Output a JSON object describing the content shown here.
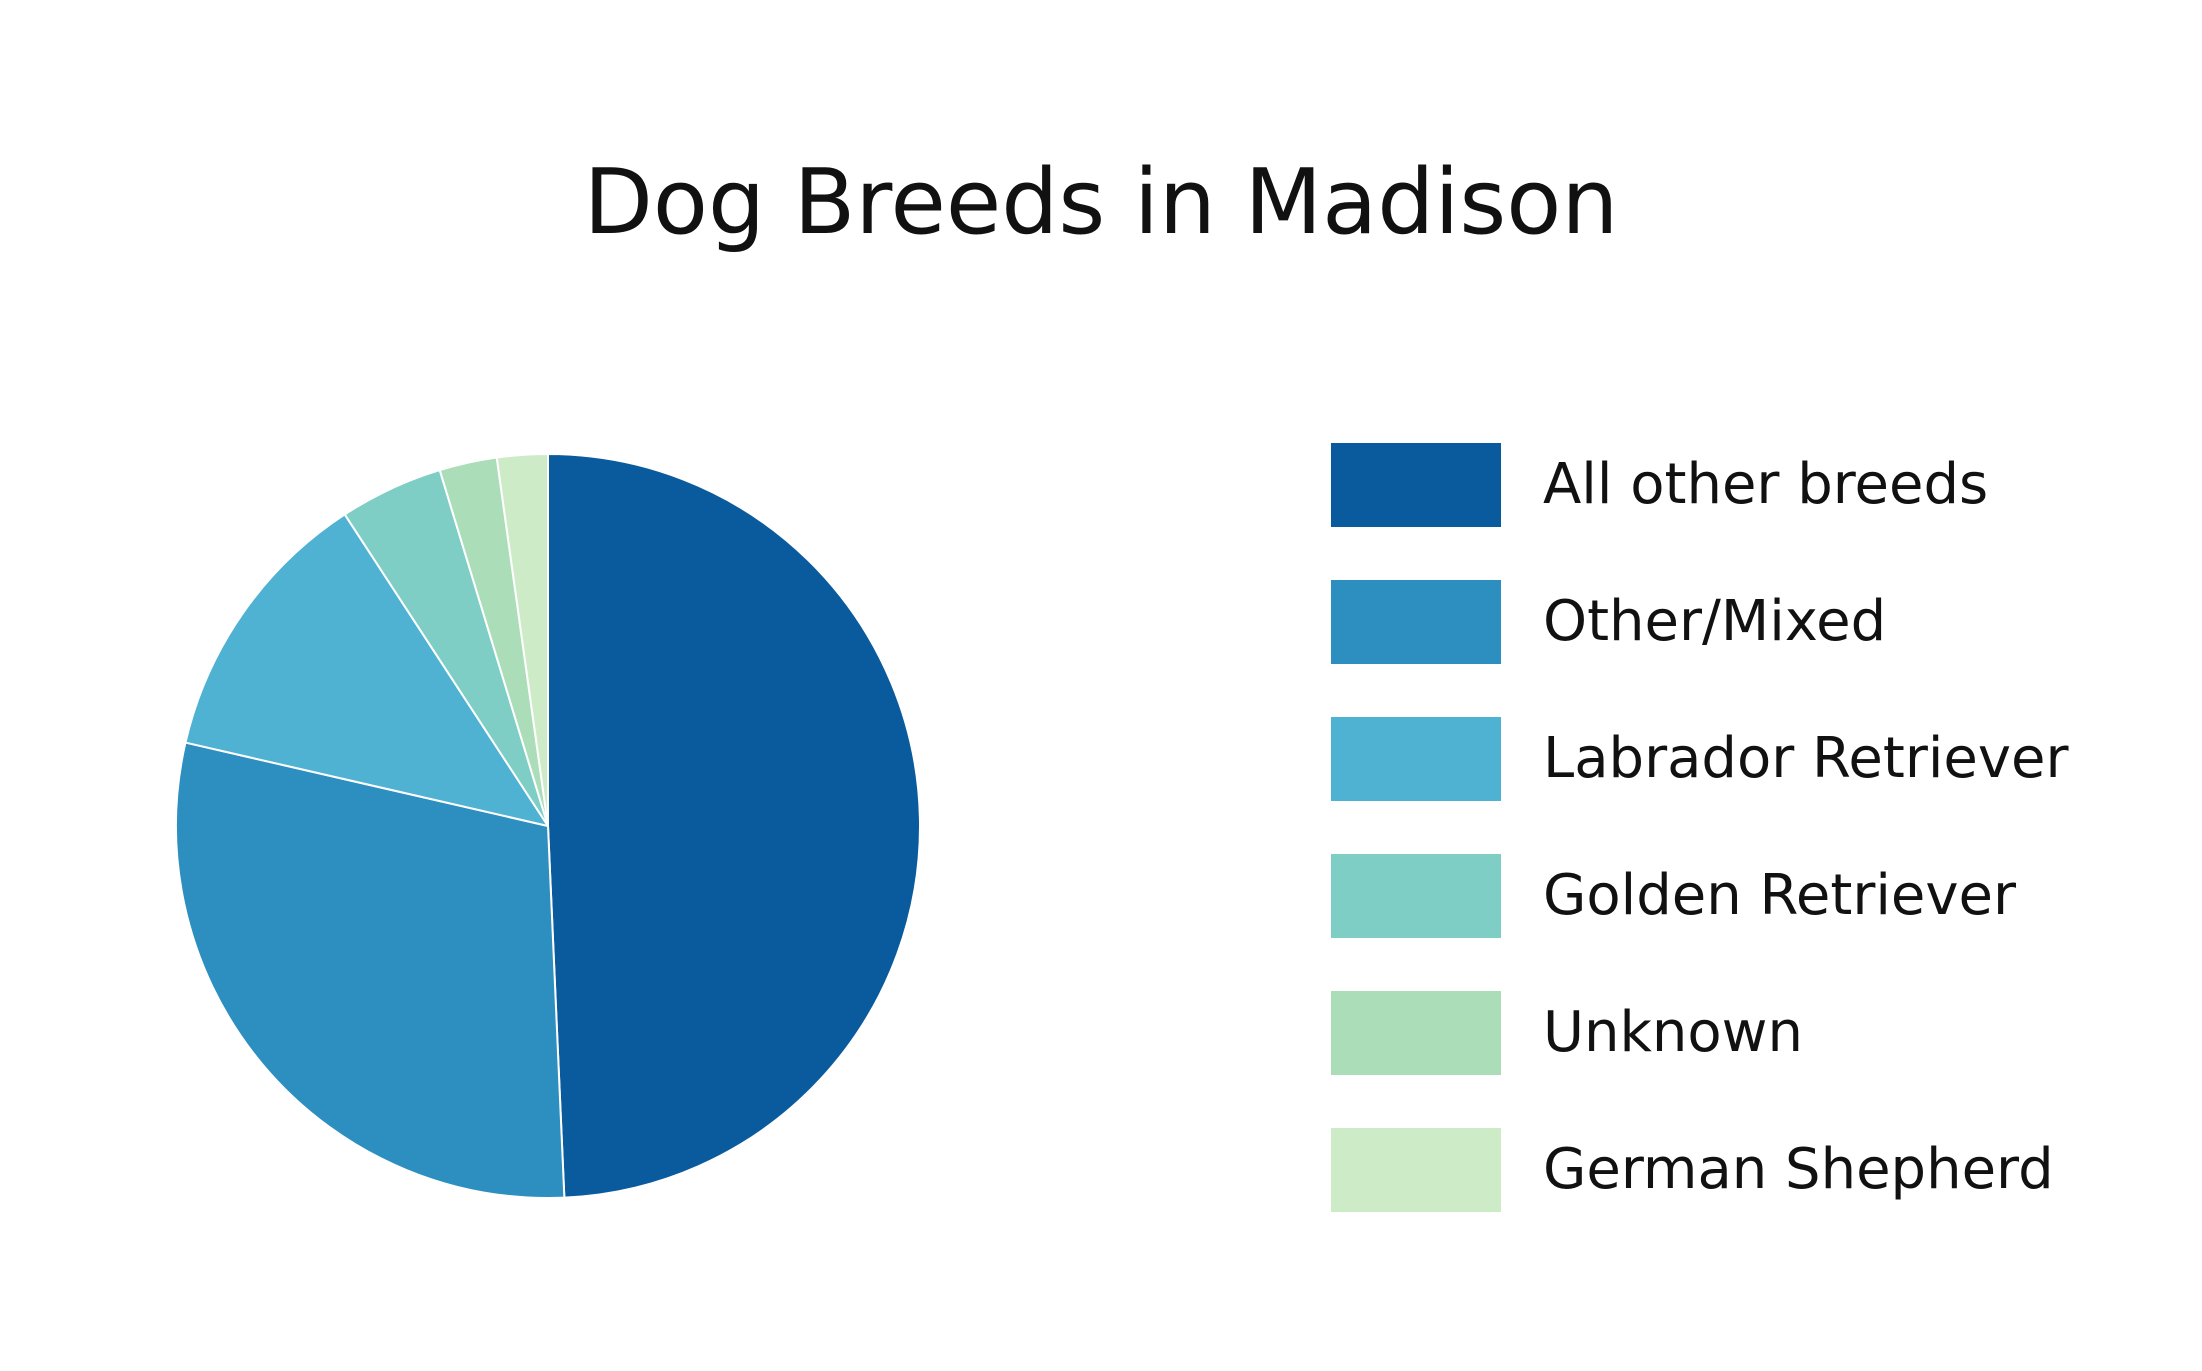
{
  "chart_data": {
    "type": "pie",
    "title": "Dog Breeds in Madison",
    "legend_position": "right",
    "slices": [
      {
        "name": "All other breeds",
        "value": 49.3,
        "color": "#0a5a9e"
      },
      {
        "name": "Other/Mixed",
        "value": 29.3,
        "color": "#2d8ec0"
      },
      {
        "name": "Labrador Retriever",
        "value": 12.2,
        "color": "#4fb2d3"
      },
      {
        "name": "Golden Retriever",
        "value": 4.5,
        "color": "#7ecec6"
      },
      {
        "name": "Unknown",
        "value": 2.5,
        "color": "#abdeb8"
      },
      {
        "name": "German Shepherd",
        "value": 2.2,
        "color": "#cdebc7"
      }
    ]
  }
}
